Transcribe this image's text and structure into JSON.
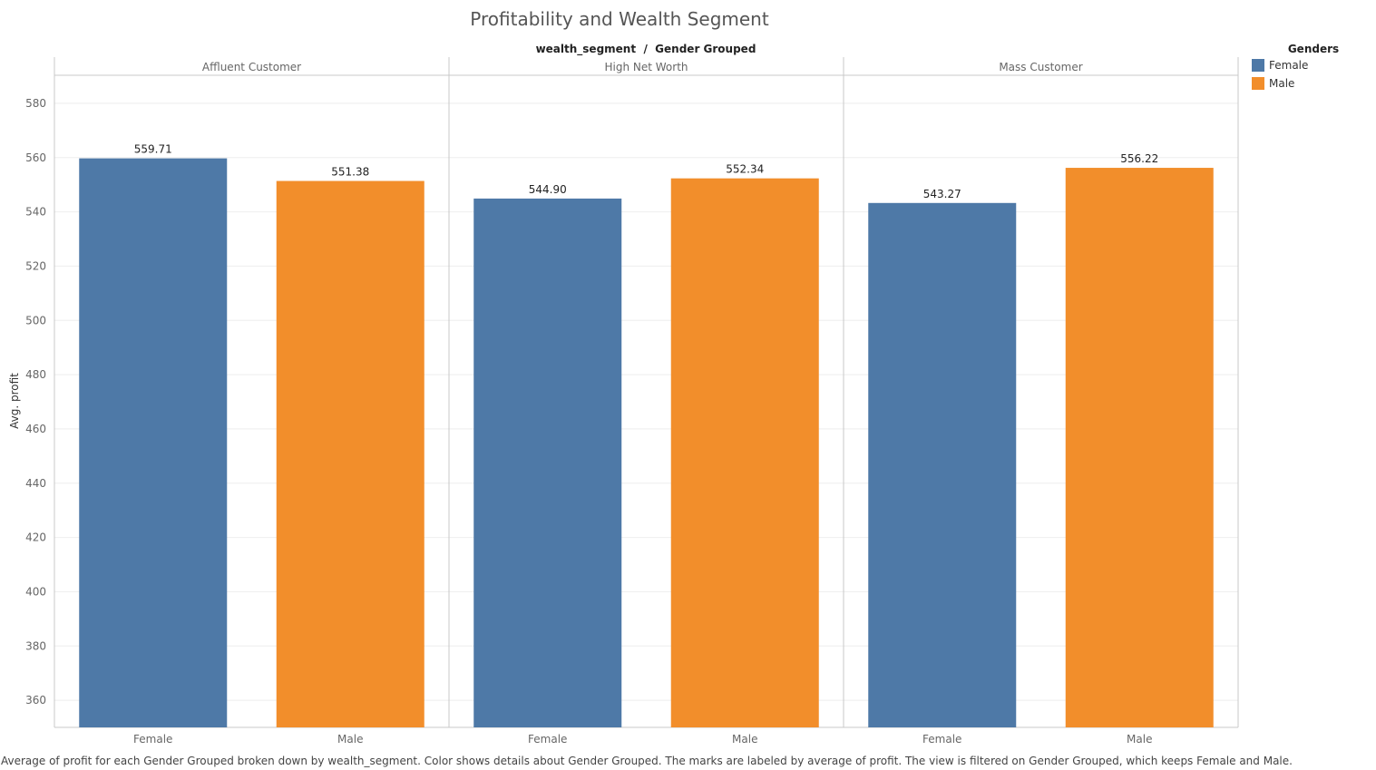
{
  "chart_data": {
    "type": "bar",
    "title": "Profitability and Wealth Segment",
    "column_header": "wealth_segment  /  Gender Grouped",
    "ylabel": "Avg. profit",
    "ylim": [
      350,
      590
    ],
    "yticks": [
      360,
      380,
      400,
      420,
      440,
      460,
      480,
      500,
      520,
      540,
      560,
      580
    ],
    "grid": true,
    "panes": [
      {
        "name": "Affluent Customer",
        "categories": [
          "Female",
          "Male"
        ],
        "values": [
          559.71,
          551.38
        ],
        "labels": [
          "559.71",
          "551.38"
        ]
      },
      {
        "name": "High Net Worth",
        "categories": [
          "Female",
          "Male"
        ],
        "values": [
          544.9,
          552.34
        ],
        "labels": [
          "544.90",
          "552.34"
        ]
      },
      {
        "name": "Mass Customer",
        "categories": [
          "Female",
          "Male"
        ],
        "values": [
          543.27,
          556.22
        ],
        "labels": [
          "543.27",
          "556.22"
        ]
      }
    ],
    "legend": {
      "title": "Genders",
      "placement": "top-right",
      "items": [
        {
          "label": "Female",
          "color": "#4e79a7"
        },
        {
          "label": "Male",
          "color": "#f28e2b"
        }
      ]
    }
  },
  "caption": "Average of profit for each Gender Grouped broken down by wealth_segment.  Color shows details about Gender Grouped.  The marks are labeled by average of profit. The view is filtered on Gender Grouped, which keeps Female and Male."
}
